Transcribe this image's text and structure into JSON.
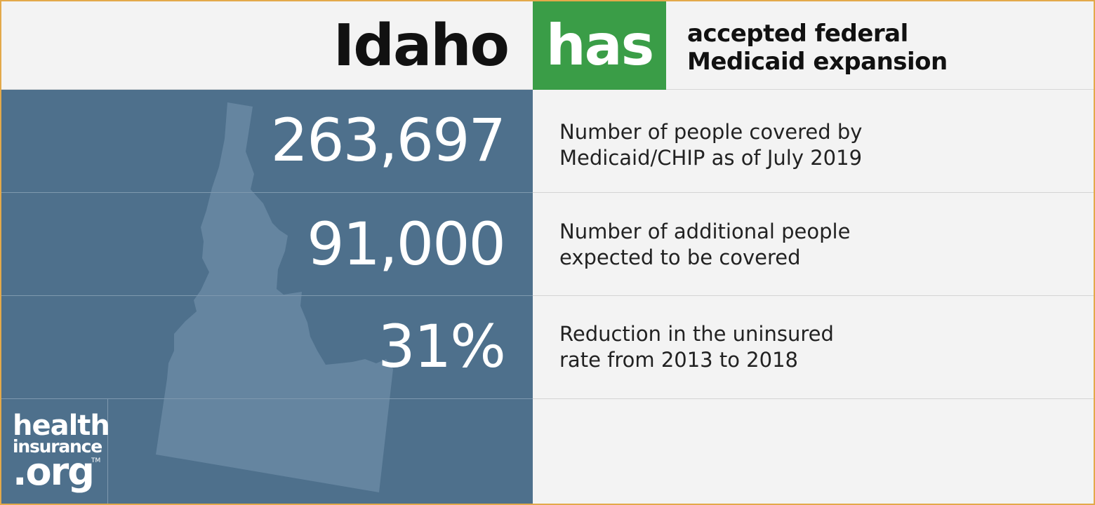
{
  "header": {
    "state": "Idaho",
    "status": "has",
    "description_line1": "accepted federal",
    "description_line2": "Medicaid expansion"
  },
  "stats": [
    {
      "value": "263,697",
      "label_line1": "Number of people covered by",
      "label_line2": "Medicaid/CHIP as of July 2019"
    },
    {
      "value": "91,000",
      "label_line1": "Number of additional people",
      "label_line2": "expected to be covered"
    },
    {
      "value": "31%",
      "label_line1": "Reduction in the uninsured",
      "label_line2": "rate from 2013 to 2018"
    }
  ],
  "logo": {
    "line1": "health",
    "line2": "insurance",
    "line3": ".org",
    "trademark": "TM"
  },
  "colors": {
    "panel_blue": "#4e708c",
    "state_shape": "#6585a0",
    "status_green": "#3a9d47",
    "border_gold": "#e3a94a",
    "background": "#f3f3f3"
  },
  "icons": {
    "state_map": "idaho-state-silhouette"
  }
}
